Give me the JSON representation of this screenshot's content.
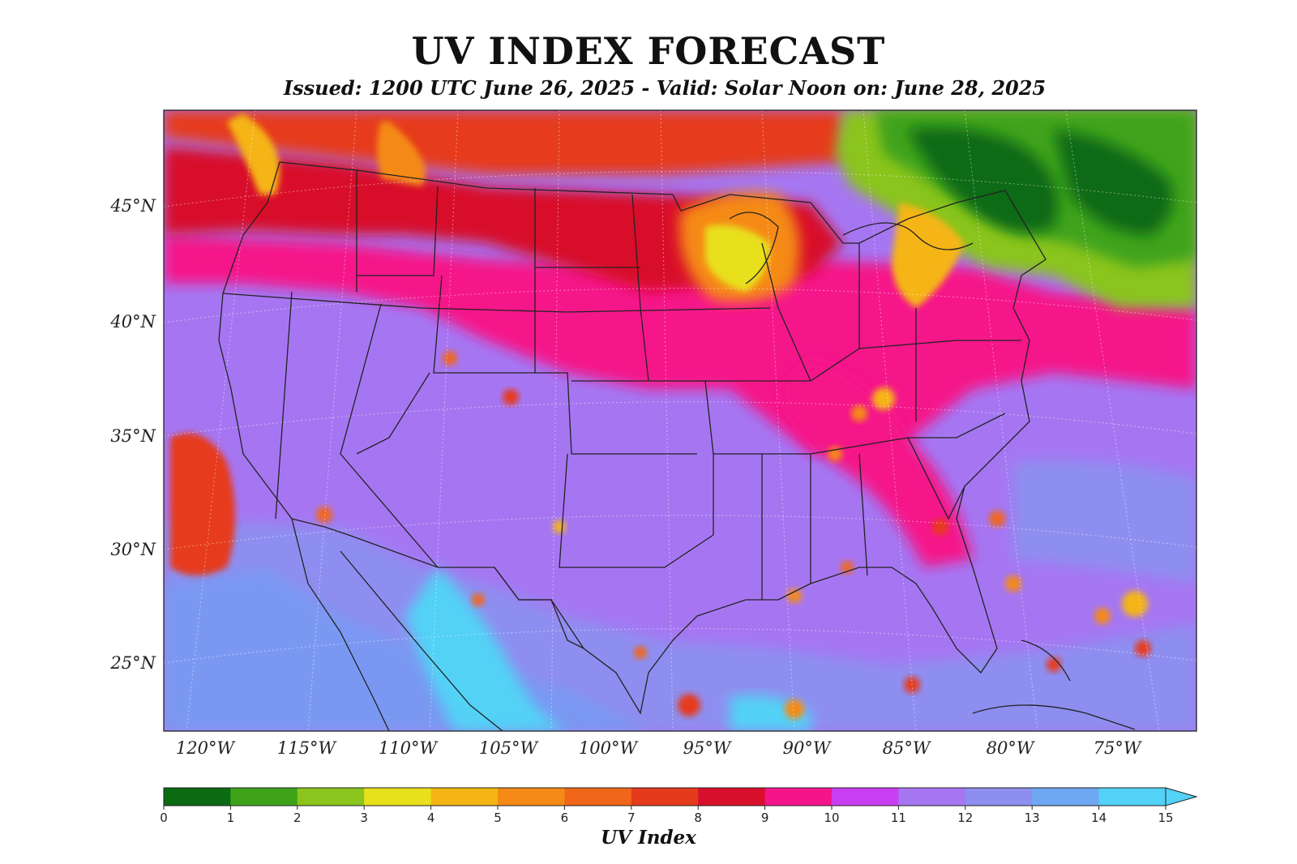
{
  "title": "UV INDEX FORECAST",
  "subtitle": "Issued: 1200 UTC June 26, 2025 - Valid: Solar Noon on: June 28, 2025",
  "latitude_labels": [
    "45°N",
    "40°N",
    "35°N",
    "30°N",
    "25°N"
  ],
  "longitude_labels": [
    "120°W",
    "115°W",
    "110°W",
    "105°W",
    "100°W",
    "95°W",
    "90°W",
    "85°W",
    "80°W",
    "75°W"
  ],
  "colorbar": {
    "title": "UV Index",
    "ticks": [
      "0",
      "1",
      "2",
      "3",
      "4",
      "5",
      "6",
      "7",
      "8",
      "9",
      "10",
      "11",
      "12",
      "13",
      "14",
      "15"
    ],
    "colors": [
      "#0a6b12",
      "#3fa31a",
      "#8ac41c",
      "#e8e01a",
      "#f5b514",
      "#f58a16",
      "#f0661a",
      "#e63a1c",
      "#d80f2a",
      "#f5148a",
      "#c93ef0",
      "#a676f2",
      "#8e8ef0",
      "#6ea8f2",
      "#52d2f6"
    ],
    "extend_color": "#52d2f6"
  }
}
